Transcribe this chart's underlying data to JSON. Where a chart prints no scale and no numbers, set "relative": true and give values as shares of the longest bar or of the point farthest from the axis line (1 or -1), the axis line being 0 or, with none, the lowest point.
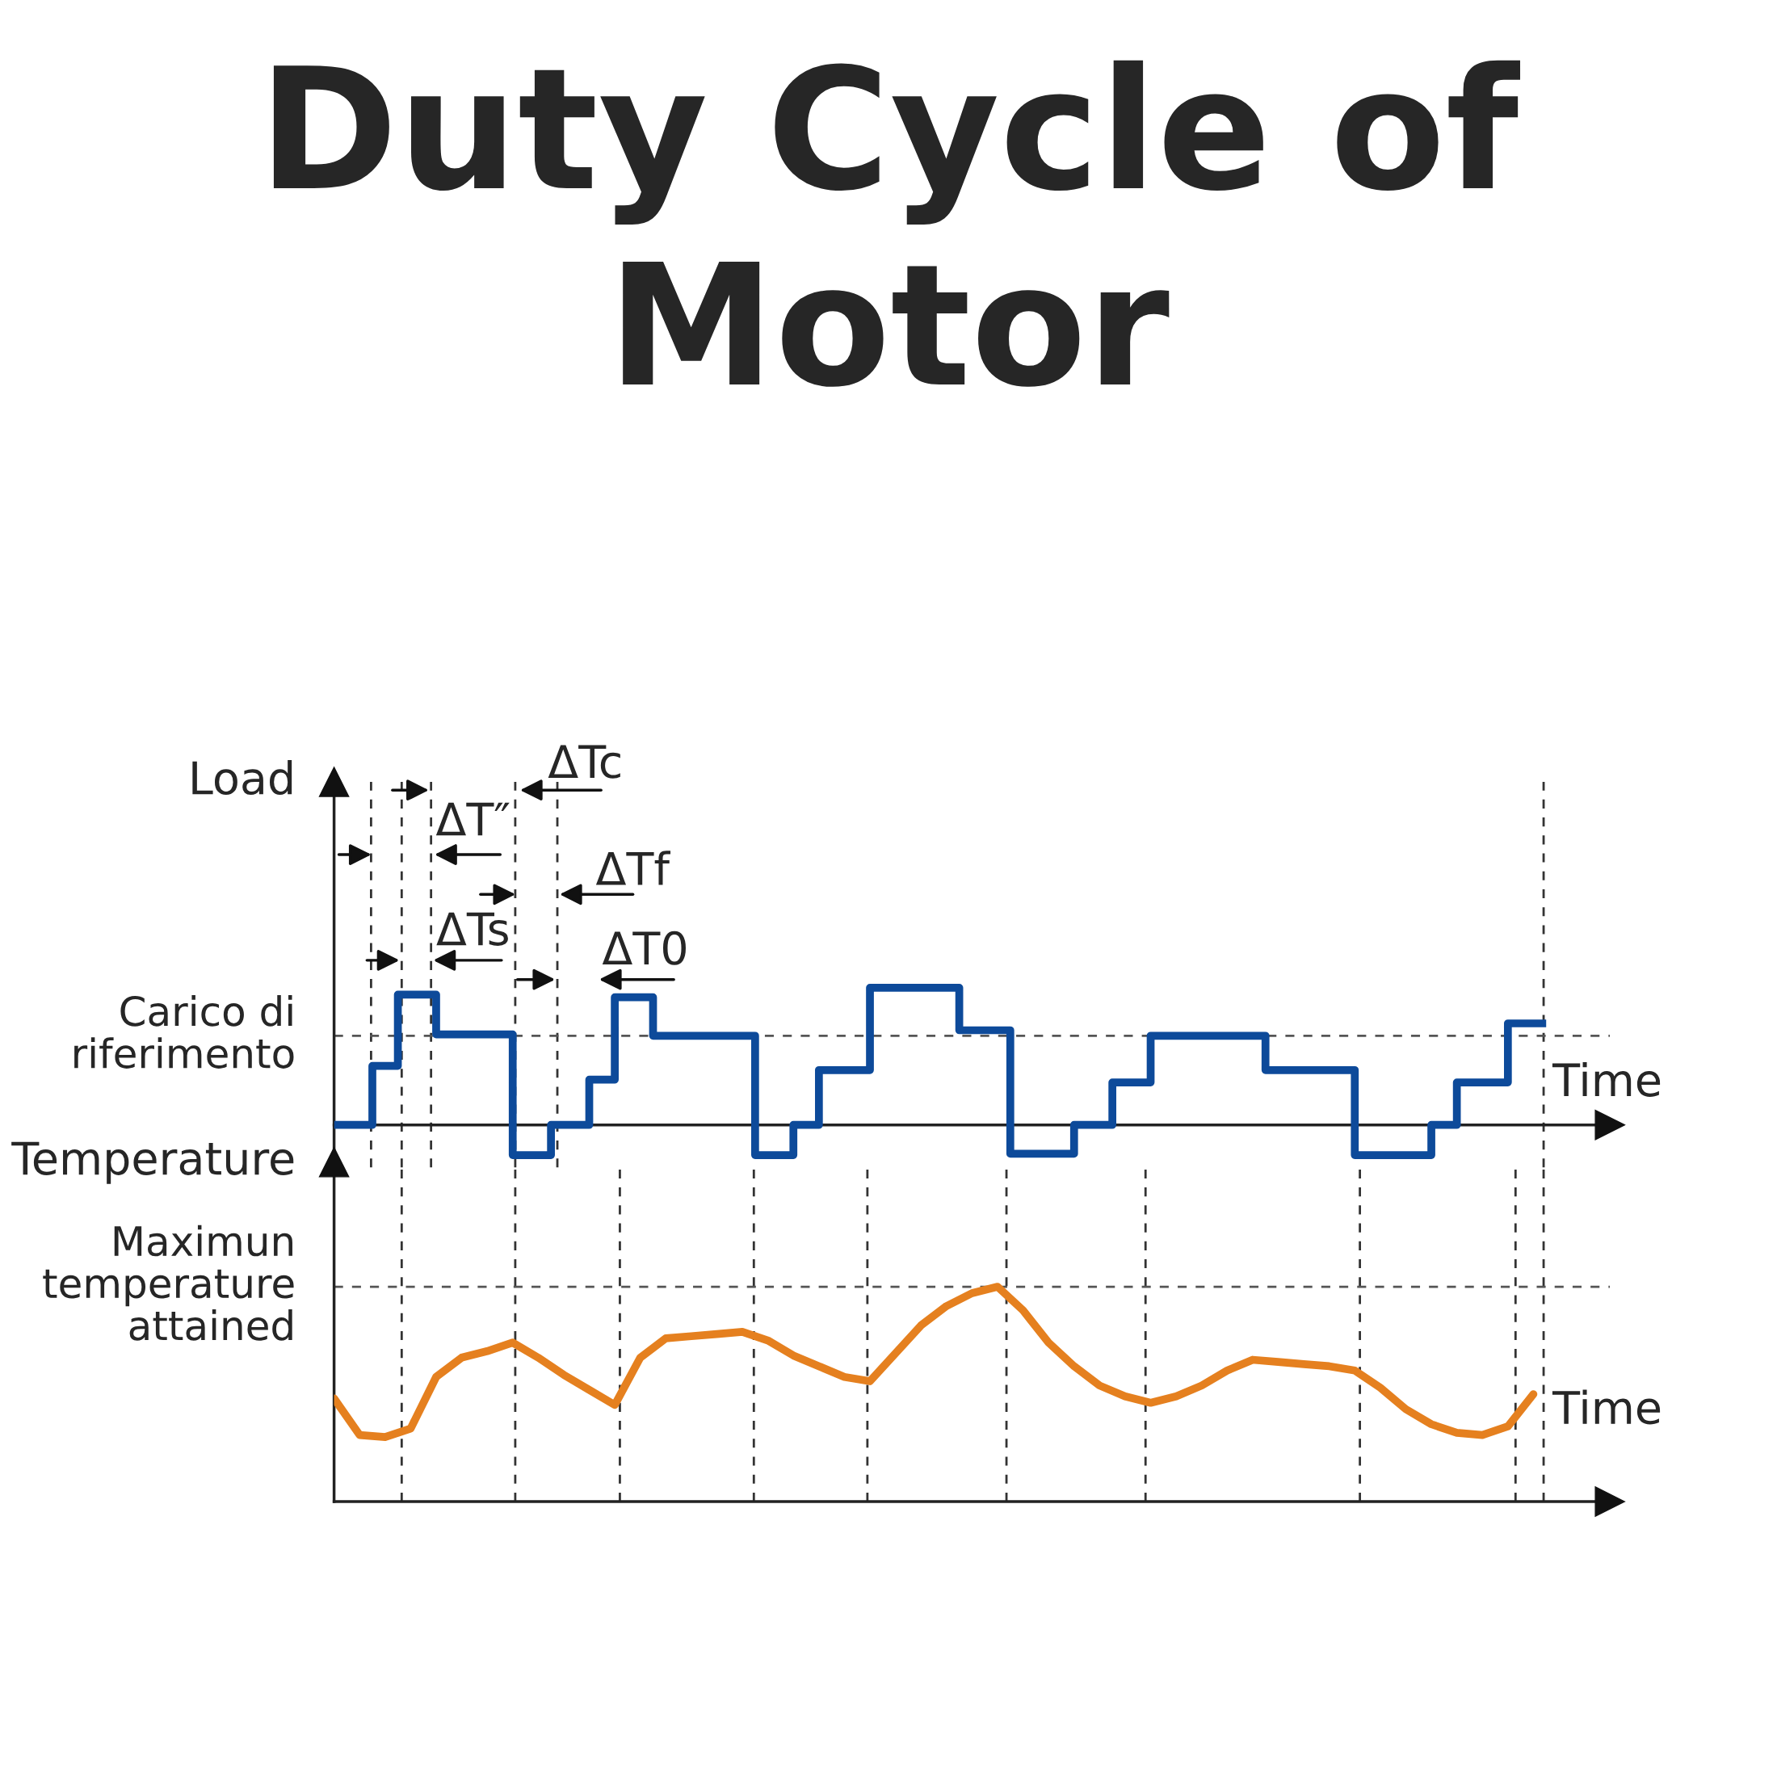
{
  "chart_data": [
    {
      "type": "step",
      "title": "Duty Cycle of Motor",
      "ylabel": "Load",
      "xlabel": "Time",
      "relative": true,
      "categories": [
        null,
        null,
        null,
        null,
        null,
        null,
        null,
        null,
        null,
        null,
        null,
        null,
        null,
        null,
        null,
        null,
        null,
        null,
        null,
        null,
        null,
        null,
        null,
        null,
        null,
        null,
        null,
        null,
        null,
        null,
        null,
        null,
        null,
        null,
        null,
        null,
        null,
        null,
        null,
        null,
        null,
        null,
        null,
        null,
        null,
        null,
        null,
        null,
        null,
        null,
        null,
        null,
        null,
        null,
        null,
        null,
        null,
        null,
        null,
        null,
        null,
        null,
        null,
        null,
        null,
        null,
        null,
        null,
        null,
        null,
        null,
        null,
        null,
        null,
        null,
        null,
        null,
        null,
        null,
        null,
        null,
        null,
        null,
        null,
        null,
        null,
        null,
        null,
        null,
        null,
        null,
        null,
        null,
        null,
        null,
        null
      ],
      "series": [
        {
          "color": "#0d4a9a",
          "values": [
            0,
            0,
            0,
            0.43,
            0.43,
            0.95,
            0.95,
            0.95,
            0.66,
            0.66,
            0.66,
            0.66,
            0.66,
            0.66,
            -0.22,
            -0.22,
            -0.22,
            0,
            0,
            0,
            0.33,
            0.33,
            0.93,
            0.93,
            0.93,
            0.65,
            0.65,
            0.65,
            0.65,
            0.65,
            0.65,
            0.65,
            0.65,
            -0.22,
            -0.22,
            -0.22,
            0,
            0,
            0.4,
            0.4,
            0.4,
            0.4,
            1.0,
            1.0,
            1.0,
            1.0,
            1.0,
            1.0,
            1.0,
            0.69,
            0.69,
            0.69,
            0.69,
            -0.21,
            -0.21,
            -0.21,
            -0.21,
            -0.21,
            0,
            0,
            0,
            0.31,
            0.31,
            0.31,
            0.65,
            0.65,
            0.65,
            0.65,
            0.65,
            0.65,
            0.65,
            0.65,
            0.65,
            0.4,
            0.4,
            0.4,
            0.4,
            0.4,
            0.4,
            0.4,
            -0.22,
            -0.22,
            -0.22,
            -0.22,
            -0.22,
            -0.22,
            0,
            0,
            0.31,
            0.31,
            0.31,
            0.31,
            0.74,
            0.74,
            0.74,
            0.74
          ]
        }
      ],
      "grid": "x",
      "ref_lines": [
        {
          "axis": "y",
          "value": 0.65,
          "label": "Carico di riferimento",
          "line_style": "dashed",
          "color": "#555555"
        }
      ],
      "annotations": [
        "ΔTc",
        "ΔT″",
        "ΔTf",
        "ΔTs",
        "ΔT0"
      ]
    },
    {
      "type": "line",
      "ylabel": "Temperature",
      "xlabel": "Time",
      "relative": true,
      "categories": [
        null,
        null,
        null,
        null,
        null,
        null,
        null,
        null,
        null,
        null,
        null,
        null,
        null,
        null,
        null,
        null,
        null,
        null,
        null,
        null,
        null,
        null,
        null,
        null,
        null,
        null,
        null,
        null,
        null,
        null,
        null,
        null,
        null,
        null,
        null,
        null,
        null,
        null,
        null,
        null,
        null,
        null,
        null,
        null,
        null,
        null,
        null,
        null
      ],
      "series": [
        {
          "color": "#e5801f",
          "values": [
            0.48,
            0.31,
            0.3,
            0.34,
            0.58,
            0.67,
            0.7,
            0.74,
            0.67,
            0.59,
            0.52,
            0.45,
            0.67,
            0.76,
            0.77,
            0.78,
            0.79,
            0.75,
            0.68,
            0.63,
            0.58,
            0.56,
            0.69,
            0.82,
            0.91,
            0.97,
            1.0,
            0.89,
            0.74,
            0.63,
            0.54,
            0.49,
            0.46,
            0.49,
            0.54,
            0.61,
            0.66,
            0.65,
            0.64,
            0.63,
            0.61,
            0.53,
            0.43,
            0.36,
            0.32,
            0.31,
            0.35,
            0.5
          ]
        }
      ],
      "grid": "x",
      "ref_lines": [
        {
          "axis": "y",
          "value": 1.0,
          "label": "Maximun temperature attained",
          "line_style": "dashed",
          "color": "#555555"
        }
      ]
    }
  ]
}
